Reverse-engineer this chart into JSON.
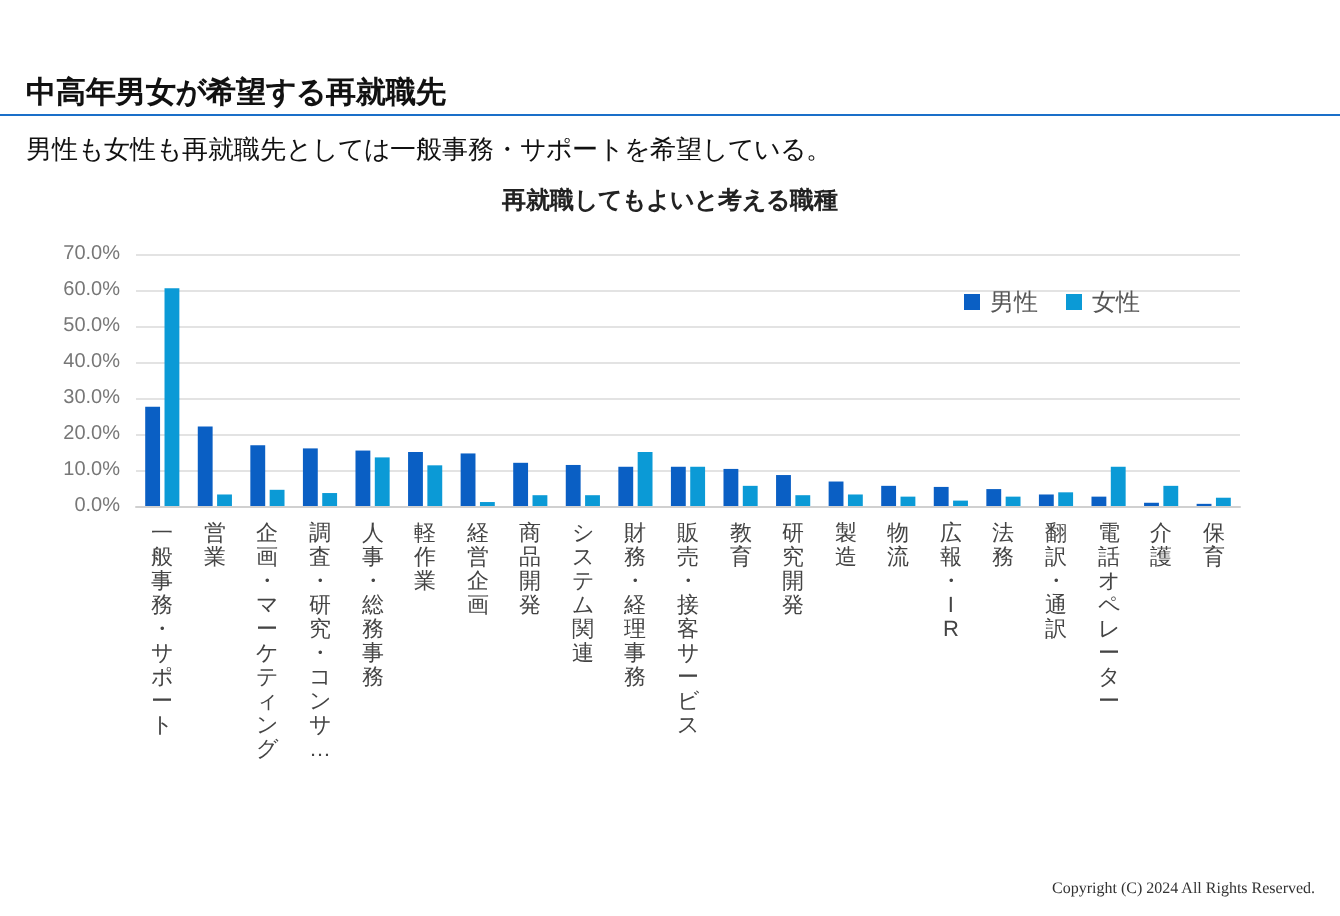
{
  "chart_data": {
    "type": "bar",
    "title": "中高年男女が希望する再就職先",
    "subtitle": "男性も女性も再就職先としては一般事務・サポートを希望している。",
    "annotations": [
      "再就職してもよいと考える職種",
      "Copyright (C) 2024 All Rights Reserved."
    ],
    "categories": [
      "一般事務・サポート",
      "営業",
      "企画・マーケティング",
      "調査・研究・コンサ…",
      "人事・総務事務",
      "軽作業",
      "経営企画",
      "商品開発",
      "システム関連",
      "財務・経理事務",
      "販売・接客サービス",
      "教育",
      "研究開発",
      "製造",
      "物流",
      "広報・IR",
      "法務",
      "翻訳・通訳",
      "電話オペレーター",
      "介護",
      "保育"
    ],
    "series": [
      {
        "name": "男性",
        "color": "#0a5fc4",
        "values": [
          27.6,
          22.1,
          16.9,
          16.0,
          15.4,
          15.0,
          14.6,
          12.0,
          11.4,
          10.9,
          10.9,
          10.3,
          8.6,
          6.8,
          5.6,
          5.3,
          4.7,
          3.2,
          2.6,
          0.9,
          0.6
        ]
      },
      {
        "name": "女性",
        "color": "#0b9ad6",
        "values": [
          60.5,
          3.2,
          4.5,
          3.6,
          13.5,
          11.3,
          1.1,
          3.0,
          3.0,
          15.0,
          10.9,
          5.6,
          3.0,
          3.2,
          2.6,
          1.5,
          2.6,
          3.8,
          10.9,
          5.6,
          2.3
        ]
      }
    ],
    "ylim": [
      0,
      70
    ],
    "yticks": [
      {
        "value": 0,
        "label": "0.0%"
      },
      {
        "value": 10,
        "label": "10.0%"
      },
      {
        "value": 20,
        "label": "20.0%"
      },
      {
        "value": 30,
        "label": "30.0%"
      },
      {
        "value": 40,
        "label": "40.0%"
      },
      {
        "value": 50,
        "label": "50.0%"
      },
      {
        "value": 60,
        "label": "60.0%"
      },
      {
        "value": 70,
        "label": "70.0%"
      }
    ],
    "grid": "y",
    "legend": "top right"
  }
}
